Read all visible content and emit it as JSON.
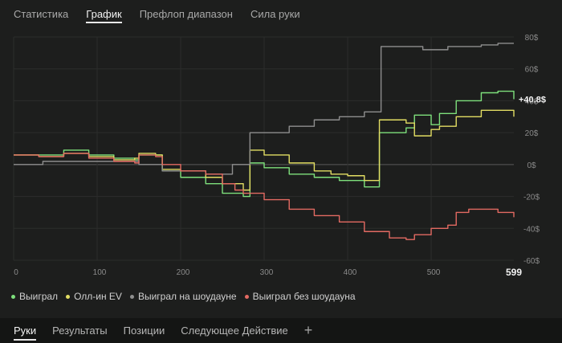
{
  "tabs": [
    {
      "label": "Статистика"
    },
    {
      "label": "График"
    },
    {
      "label": "Префлоп диапазон"
    },
    {
      "label": "Сила руки"
    }
  ],
  "active_tab": 1,
  "chart_data": {
    "type": "line",
    "xlim": [
      0,
      599
    ],
    "ylim": [
      -60,
      80
    ],
    "x_ticks": [
      0,
      100,
      200,
      300,
      400,
      500
    ],
    "x_tick_labels": [
      "0",
      "100",
      "200",
      "300",
      "400",
      "500"
    ],
    "x_end_label": "599",
    "y_ticks": [
      80,
      60,
      40,
      20,
      0,
      -20,
      -40,
      -60
    ],
    "y_tick_labels": [
      "80$",
      "60$",
      "40$",
      "20$",
      "0$",
      "-20$",
      "-40$",
      "-60$"
    ],
    "end_value_label": "+40.8$",
    "grid": true,
    "legend": "bottom-left",
    "series": [
      {
        "name": "Выиграл",
        "color": "#7ee07c",
        "points": [
          [
            0,
            6
          ],
          [
            30,
            6
          ],
          [
            60,
            9
          ],
          [
            90,
            6
          ],
          [
            120,
            4
          ],
          [
            145,
            3
          ],
          [
            150,
            6
          ],
          [
            170,
            6
          ],
          [
            178,
            -4
          ],
          [
            200,
            -8
          ],
          [
            230,
            -12
          ],
          [
            250,
            -18
          ],
          [
            265,
            -18
          ],
          [
            275,
            -20
          ],
          [
            283,
            1
          ],
          [
            300,
            -2
          ],
          [
            330,
            -6
          ],
          [
            360,
            -8
          ],
          [
            390,
            -10
          ],
          [
            420,
            -14
          ],
          [
            435,
            -14
          ],
          [
            438,
            20
          ],
          [
            470,
            23
          ],
          [
            480,
            31
          ],
          [
            500,
            25
          ],
          [
            510,
            32
          ],
          [
            530,
            40
          ],
          [
            560,
            45
          ],
          [
            580,
            46
          ],
          [
            599,
            41
          ]
        ]
      },
      {
        "name": "Олл-ин EV",
        "color": "#e2dd63",
        "points": [
          [
            0,
            6
          ],
          [
            30,
            5
          ],
          [
            60,
            7
          ],
          [
            90,
            5
          ],
          [
            120,
            3
          ],
          [
            145,
            4
          ],
          [
            150,
            7
          ],
          [
            170,
            6
          ],
          [
            178,
            -3
          ],
          [
            200,
            -4
          ],
          [
            230,
            -8
          ],
          [
            250,
            -12
          ],
          [
            265,
            -12
          ],
          [
            275,
            -16
          ],
          [
            283,
            9
          ],
          [
            300,
            6
          ],
          [
            330,
            1
          ],
          [
            360,
            -4
          ],
          [
            380,
            -6
          ],
          [
            400,
            -7
          ],
          [
            420,
            -10
          ],
          [
            435,
            -10
          ],
          [
            438,
            28
          ],
          [
            470,
            26
          ],
          [
            480,
            18
          ],
          [
            500,
            22
          ],
          [
            510,
            24
          ],
          [
            530,
            30
          ],
          [
            560,
            34
          ],
          [
            580,
            34
          ],
          [
            599,
            30
          ]
        ]
      },
      {
        "name": "Выиграл на шоудауне",
        "color": "#8e8e8e",
        "points": [
          [
            0,
            0
          ],
          [
            35,
            0
          ],
          [
            35,
            2
          ],
          [
            80,
            2
          ],
          [
            95,
            2
          ],
          [
            145,
            2
          ],
          [
            150,
            0
          ],
          [
            170,
            0
          ],
          [
            178,
            -4
          ],
          [
            200,
            -4
          ],
          [
            230,
            -6
          ],
          [
            250,
            -6
          ],
          [
            262,
            0
          ],
          [
            275,
            0
          ],
          [
            283,
            20
          ],
          [
            300,
            20
          ],
          [
            330,
            24
          ],
          [
            360,
            28
          ],
          [
            390,
            30
          ],
          [
            420,
            33
          ],
          [
            435,
            33
          ],
          [
            440,
            74
          ],
          [
            470,
            74
          ],
          [
            490,
            72
          ],
          [
            520,
            74
          ],
          [
            560,
            75
          ],
          [
            580,
            76
          ],
          [
            599,
            76
          ]
        ]
      },
      {
        "name": "Выиграл без шоудауна",
        "color": "#e36a62",
        "points": [
          [
            0,
            6
          ],
          [
            30,
            5
          ],
          [
            60,
            7
          ],
          [
            90,
            4
          ],
          [
            120,
            2
          ],
          [
            145,
            1
          ],
          [
            150,
            6
          ],
          [
            170,
            5
          ],
          [
            178,
            0
          ],
          [
            200,
            -4
          ],
          [
            230,
            -6
          ],
          [
            250,
            -12
          ],
          [
            265,
            -16
          ],
          [
            275,
            -18
          ],
          [
            283,
            -18
          ],
          [
            300,
            -22
          ],
          [
            330,
            -28
          ],
          [
            360,
            -32
          ],
          [
            390,
            -36
          ],
          [
            420,
            -42
          ],
          [
            450,
            -46
          ],
          [
            470,
            -47
          ],
          [
            480,
            -44
          ],
          [
            500,
            -40
          ],
          [
            520,
            -38
          ],
          [
            530,
            -30
          ],
          [
            545,
            -28
          ],
          [
            560,
            -28
          ],
          [
            580,
            -30
          ],
          [
            599,
            -33
          ]
        ]
      }
    ]
  },
  "bottom_tabs": [
    {
      "label": "Руки"
    },
    {
      "label": "Результаты"
    },
    {
      "label": "Позиции"
    },
    {
      "label": "Следующее Действие"
    }
  ],
  "add_tab_label": "+",
  "icons": {
    "add": "plus-icon"
  }
}
